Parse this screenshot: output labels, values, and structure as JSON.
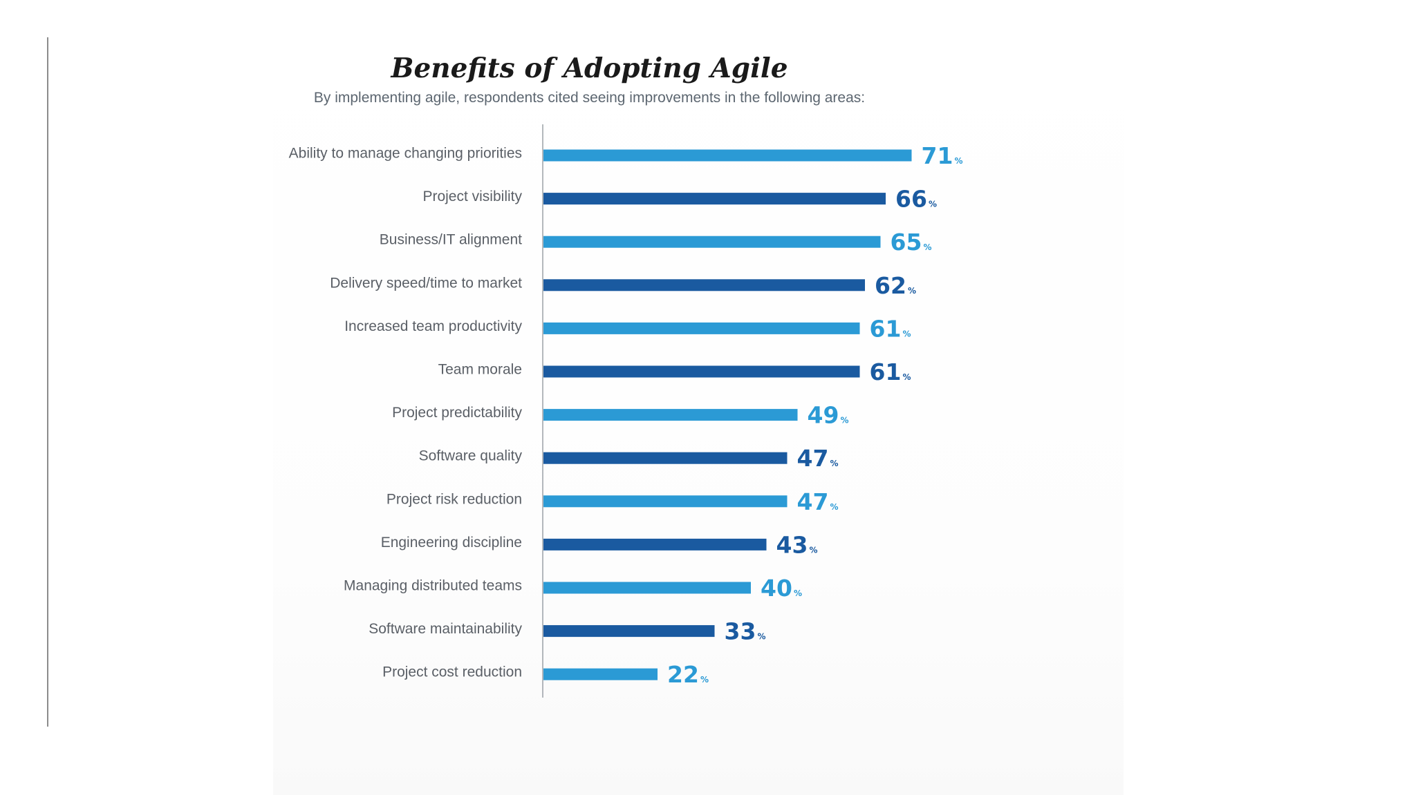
{
  "chart_data": {
    "type": "bar",
    "orientation": "horizontal",
    "title": "Benefits of Adopting Agile",
    "subtitle": "By implementing agile, respondents cited seeing improvements in the following areas:",
    "value_suffix": "%",
    "xlim": [
      0,
      100
    ],
    "xlabel": "",
    "ylabel": "",
    "grid": false,
    "legend": "none",
    "colors": {
      "light": "#2b9ad5",
      "dark": "#1a5aa0"
    },
    "categories": [
      "Ability to manage changing priorities",
      "Project visibility",
      "Business/IT alignment",
      "Delivery speed/time to market",
      "Increased team productivity",
      "Team morale",
      "Project predictability",
      "Software quality",
      "Project risk reduction",
      "Engineering discipline",
      "Managing distributed teams",
      "Software maintainability",
      "Project cost reduction"
    ],
    "values": [
      71,
      66,
      65,
      62,
      61,
      61,
      49,
      47,
      47,
      43,
      40,
      33,
      22
    ],
    "value_labels": [
      "71",
      "66",
      "65",
      "62",
      "61",
      "61",
      "49",
      "47",
      "47",
      "43",
      "40",
      "33",
      "22"
    ],
    "bar_colors": [
      "light",
      "dark",
      "light",
      "dark",
      "light",
      "dark",
      "light",
      "dark",
      "light",
      "dark",
      "light",
      "dark",
      "light"
    ]
  }
}
